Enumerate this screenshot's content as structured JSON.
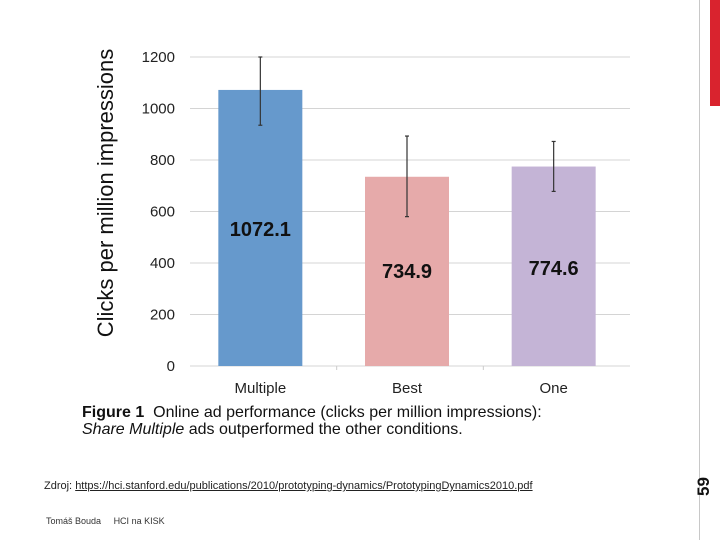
{
  "chart_data": {
    "type": "bar",
    "title": "",
    "xlabel": "",
    "ylabel": "Clicks per million impressions",
    "ylim": [
      0,
      1200
    ],
    "yticks": [
      0,
      200,
      400,
      600,
      800,
      1000,
      1200
    ],
    "categories": [
      "Multiple",
      "Best",
      "One"
    ],
    "values": [
      1072.1,
      734.9,
      774.6
    ],
    "data_labels": [
      "1072.1",
      "734.9",
      "774.6"
    ],
    "error_bars": [
      {
        "low": 935,
        "high": 1200
      },
      {
        "low": 580,
        "high": 893
      },
      {
        "low": 678,
        "high": 872
      }
    ],
    "colors": [
      "#6699cc",
      "#e6aaaa",
      "#c4b4d6"
    ],
    "grid": true
  },
  "caption": {
    "figure_label": "Figure 1",
    "line1": "Online ad performance (clicks per million impressions):",
    "line2_italic": "Share Multiple",
    "line2_rest": "ads outperformed the other conditions."
  },
  "source": {
    "prefix": "Zdroj:",
    "url": "https://hci.stanford.edu/publications/2010/prototyping-dynamics/PrototypingDynamics2010.pdf"
  },
  "footer": {
    "author": "Tomáš Bouda",
    "course": "HCI na KISK"
  },
  "slide_number": "59",
  "colors": {
    "accent": "#d9232e"
  }
}
